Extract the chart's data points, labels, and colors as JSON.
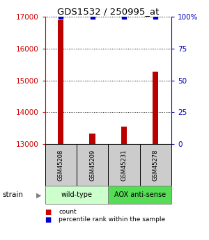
{
  "title": "GDS1532 / 250995_at",
  "samples": [
    "GSM45208",
    "GSM45209",
    "GSM45231",
    "GSM45278"
  ],
  "count_values": [
    16900,
    13320,
    13550,
    15280
  ],
  "percentile_values": [
    100,
    100,
    100,
    100
  ],
  "ylim_left": [
    13000,
    17000
  ],
  "ylim_right": [
    0,
    100
  ],
  "yticks_left": [
    13000,
    14000,
    15000,
    16000,
    17000
  ],
  "yticks_right": [
    0,
    25,
    50,
    75,
    100
  ],
  "bar_color_red": "#bb0000",
  "bar_color_blue": "#0000cc",
  "group_colors_wt": "#ccffcc",
  "group_colors_aox": "#55dd55",
  "sample_box_color": "#cccccc",
  "legend_count_color": "#cc0000",
  "legend_pct_color": "#0000cc",
  "left_axis_color": "#cc0000",
  "right_axis_color": "#0000bb",
  "background_color": "#ffffff",
  "strain_label": "strain",
  "group_label_1": "wild-type",
  "group_label_2": "AOX anti-sense",
  "bar_width": 0.18
}
